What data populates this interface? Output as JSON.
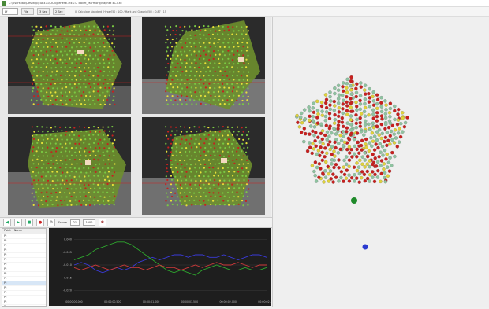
{
  "window": {
    "title": "C:\\Users\\lab\\Desktop\\FAB471\\DCB\\general-MEST2 Ballet_Marmorg\\Magnet 4C.c3d"
  },
  "toolbar": {
    "select_value": "Lf",
    "btn1": "File",
    "btn2": "3 Sec",
    "btn3": "2 Sec",
    "status": "0: Calculate standard [Hyper]50 : 100 / Mark and Graphic(50) : 0.87 : 15"
  },
  "controls": {
    "frame_label": "Frame",
    "frame_value": "21",
    "range_value": "1000"
  },
  "list": {
    "headers": [
      "Point",
      "Name"
    ],
    "items": [
      "Pt",
      "Pt",
      "Pt",
      "Pt",
      "Pt",
      "Pt",
      "Pt",
      "Pt",
      "Pt",
      "Pt",
      "Pt",
      "Pt",
      "Pt",
      "Pt",
      "Pt",
      "Pt",
      "Pt",
      "Pt"
    ],
    "selected_index": 10
  },
  "chart_data": {
    "type": "line",
    "x_ticks": [
      "00:00:00.000",
      "00:00:00.500",
      "00:00:01.000",
      "00:00:01.500",
      "00:00:02.000",
      "00:00:02.500"
    ],
    "y_ticks": [
      "0.000",
      "-0.005",
      "-0.010",
      "-0.015",
      "-0.020"
    ],
    "series": [
      {
        "color": "#3a3ad8",
        "values": [
          -0.01,
          -0.009,
          -0.01,
          -0.012,
          -0.013,
          -0.012,
          -0.011,
          -0.012,
          -0.011,
          -0.009,
          -0.008,
          -0.007,
          -0.008,
          -0.007,
          -0.006,
          -0.006,
          -0.007,
          -0.006,
          -0.006,
          -0.007,
          -0.007,
          -0.006,
          -0.007,
          -0.008,
          -0.007,
          -0.006,
          -0.006,
          -0.007
        ]
      },
      {
        "color": "#2ea82e",
        "values": [
          -0.008,
          -0.007,
          -0.006,
          -0.004,
          -0.003,
          -0.002,
          -0.001,
          -0.001,
          -0.002,
          -0.004,
          -0.006,
          -0.008,
          -0.01,
          -0.012,
          -0.013,
          -0.012,
          -0.013,
          -0.014,
          -0.012,
          -0.011,
          -0.01,
          -0.011,
          -0.012,
          -0.012,
          -0.011,
          -0.012,
          -0.012,
          -0.011
        ]
      },
      {
        "color": "#d23a3a",
        "values": [
          -0.011,
          -0.012,
          -0.011,
          -0.01,
          -0.011,
          -0.012,
          -0.011,
          -0.01,
          -0.011,
          -0.011,
          -0.012,
          -0.011,
          -0.01,
          -0.011,
          -0.011,
          -0.012,
          -0.011,
          -0.01,
          -0.011,
          -0.01,
          -0.009,
          -0.01,
          -0.01,
          -0.009,
          -0.01,
          -0.011,
          -0.01,
          -0.01
        ]
      }
    ],
    "ylim": [
      -0.022,
      0.002
    ]
  },
  "colors": {
    "marker_green": "#7ac943",
    "marker_yellow": "#e8e23a",
    "marker_red": "#c8201e",
    "marker_blue": "#2a3ad0"
  }
}
